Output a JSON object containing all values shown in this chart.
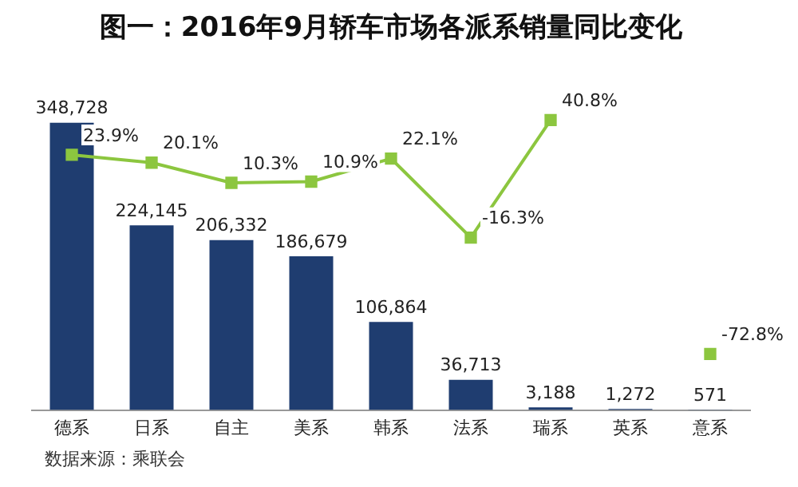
{
  "chart_data": {
    "type": "bar",
    "title": "图一：2016年9月轿车市场各派系销量同比变化",
    "categories": [
      "德系",
      "日系",
      "自主",
      "美系",
      "韩系",
      "法系",
      "瑞系",
      "英系",
      "意系"
    ],
    "series": [
      {
        "color": "#1f3d70",
        "values": [
          348728,
          224145,
          206332,
          186679,
          106864,
          36713,
          3188,
          1272,
          571
        ],
        "value_labels": [
          "348,728",
          "224,145",
          "206,332",
          "186,679",
          "106,864",
          "36,713",
          "3,188",
          "1,272",
          "571"
        ]
      },
      {
        "type": "line",
        "axis": "y2",
        "color": "#8cc63f",
        "values": [
          23.9,
          20.1,
          10.3,
          10.9,
          22.1,
          -16.3,
          40.8,
          null,
          -72.8
        ],
        "value_labels": [
          "23.9%",
          "20.1%",
          "10.3%",
          "10.9%",
          "22.1%",
          "-16.3%",
          "40.8%",
          null,
          "-72.8%"
        ]
      }
    ],
    "grid": false,
    "legend": false,
    "marker": "square",
    "line_style": "solid",
    "tick_labels": "x",
    "annotations": [
      "数据来源：乘联会"
    ]
  }
}
